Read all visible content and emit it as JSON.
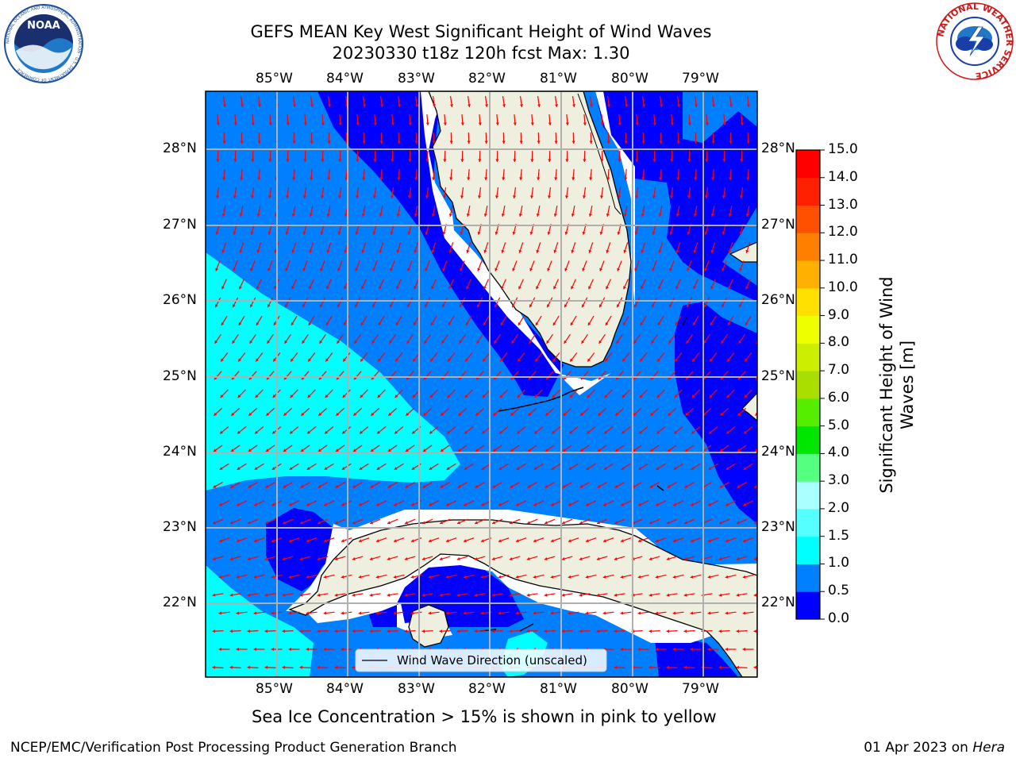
{
  "header": {
    "title_line1": "GEFS MEAN Key West Significant Height of Wind Waves",
    "title_line2": "20230330 t18z 120h fcst   Max: 1.30"
  },
  "logos": {
    "noaa_text": "NOAA",
    "noaa_ring_text": "NATIONAL OCEANIC AND ATMOSPHERIC ADMINISTRATION · U.S. DEPARTMENT OF COMMERCE",
    "nws_ring_text": "NATIONAL WEATHER SERVICE"
  },
  "map": {
    "lon_labels": [
      "85°W",
      "84°W",
      "83°W",
      "82°W",
      "81°W",
      "80°W",
      "79°W"
    ],
    "lat_labels": [
      "28°N",
      "27°N",
      "26°N",
      "25°N",
      "24°N",
      "23°N",
      "22°N"
    ],
    "legend_label": "Wind Wave Direction (unscaled)",
    "ocean_colors": {
      "0.0-0.5": "#0000ff",
      "0.5-1.0": "#0080ff",
      "1.0-1.5": "#00ffff"
    },
    "land_color": "#efefdf",
    "arrow_color": "#ff0000"
  },
  "colorbar": {
    "label_line1": "Significant Height of Wind",
    "label_line2": "Waves [m]",
    "ticks": [
      "0.0",
      "0.5",
      "1.0",
      "1.5",
      "2.0",
      "3.0",
      "4.0",
      "5.0",
      "6.0",
      "7.0",
      "8.0",
      "9.0",
      "10.0",
      "11.0",
      "12.0",
      "13.0",
      "14.0",
      "15.0"
    ],
    "colors": [
      "#0000ff",
      "#0080ff",
      "#00ffff",
      "#55ffff",
      "#aaffff",
      "#55ff80",
      "#00e600",
      "#55ee00",
      "#aadd00",
      "#ccee00",
      "#eeff00",
      "#ffe000",
      "#ffb000",
      "#ff8000",
      "#ff5000",
      "#ff2000",
      "#ff0000"
    ]
  },
  "caption": "Sea Ice Concentration > 15% is shown in pink to yellow",
  "footer": {
    "left": "NCEP/EMC/Verification Post Processing Product Generation Branch",
    "right_date": "01 Apr 2023 on ",
    "right_machine": "Hera"
  }
}
